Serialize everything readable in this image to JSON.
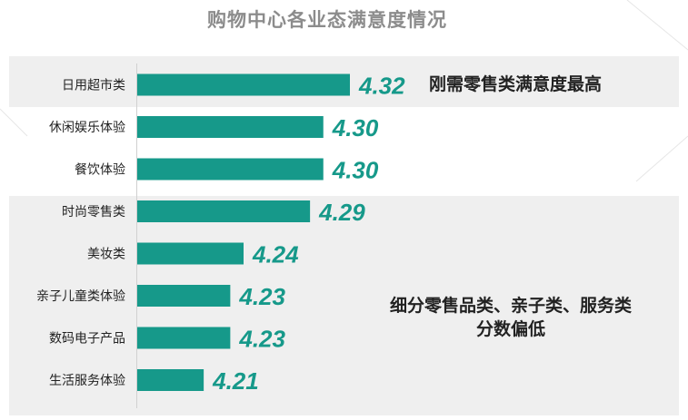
{
  "title": "购物中心各业态满意度情况",
  "annotations": {
    "top_note": "刚需零售类满意度最高",
    "bottom_note_line1": "细分零售品类、亲子类、服务类",
    "bottom_note_line2": "分数偏低"
  },
  "colors": {
    "bar": "#16998a",
    "value_label": "#16998a",
    "band": "#efefef",
    "title": "#8c8c8c"
  },
  "chart_data": {
    "type": "bar",
    "orientation": "horizontal",
    "title": "购物中心各业态满意度情况",
    "categories": [
      "日用超市类",
      "休闲娱乐体验",
      "餐饮体验",
      "时尚零售类",
      "美妆类",
      "亲子儿童类体验",
      "数码电子产品",
      "生活服务体验"
    ],
    "values": [
      4.32,
      4.3,
      4.3,
      4.29,
      4.24,
      4.23,
      4.23,
      4.21
    ],
    "value_labels": [
      "4.32",
      "4.30",
      "4.30",
      "4.29",
      "4.24",
      "4.23",
      "4.23",
      "4.21"
    ],
    "xlim": [
      4.16,
      4.32
    ],
    "grid": false,
    "legend": "none"
  }
}
